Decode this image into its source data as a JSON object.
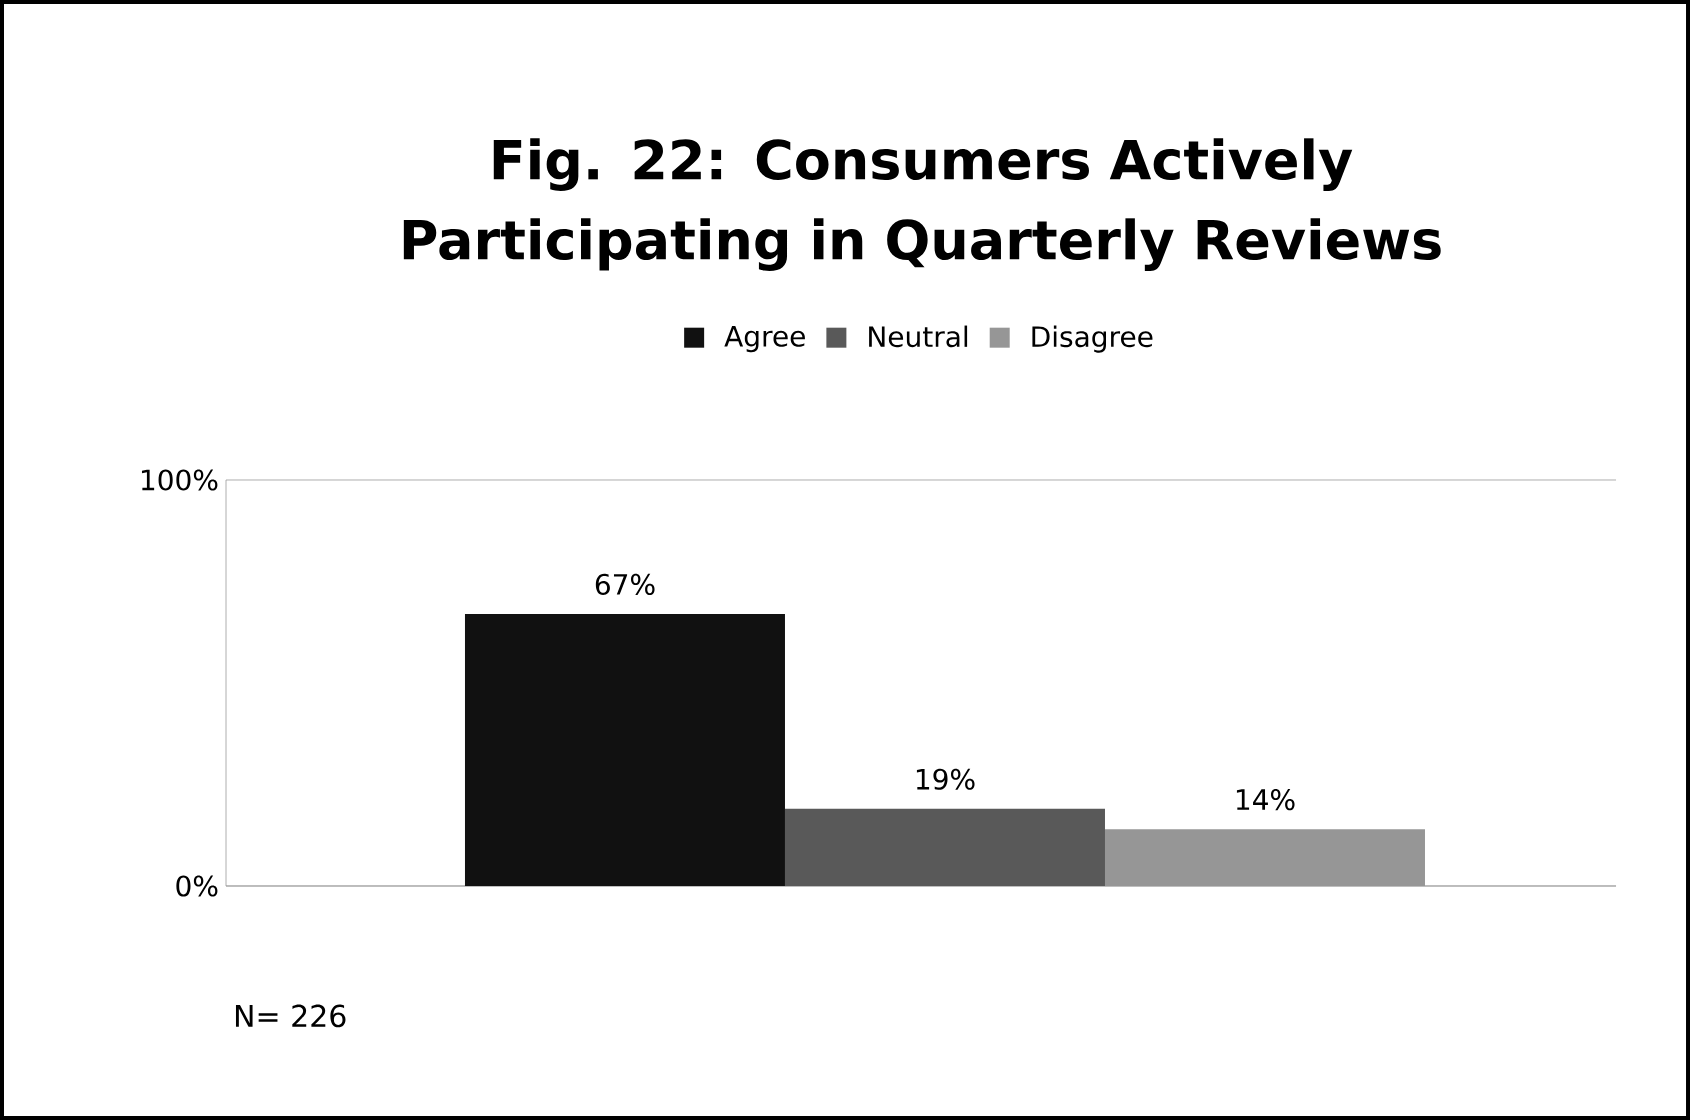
{
  "chart_data": {
    "type": "bar",
    "title": "Fig. 22: Consumers Actively Participating in Quarterly Reviews",
    "categories": [
      null
    ],
    "series": [
      {
        "name": "Agree",
        "color": "#111111",
        "values": [
          67
        ],
        "value_labels": [
          "67%"
        ]
      },
      {
        "name": "Neutral",
        "color": "#595959",
        "values": [
          19
        ],
        "value_labels": [
          "19%"
        ]
      },
      {
        "name": "Disagree",
        "color": "#969696",
        "values": [
          14
        ],
        "value_labels": [
          "14%"
        ]
      }
    ],
    "ylim": [
      0,
      100
    ],
    "yticks": [
      {
        "value": 0,
        "label": "0%"
      },
      {
        "value": 100,
        "label": "100%"
      }
    ],
    "grid": "y",
    "legend": "top",
    "annotations": [
      "N= 226"
    ]
  }
}
